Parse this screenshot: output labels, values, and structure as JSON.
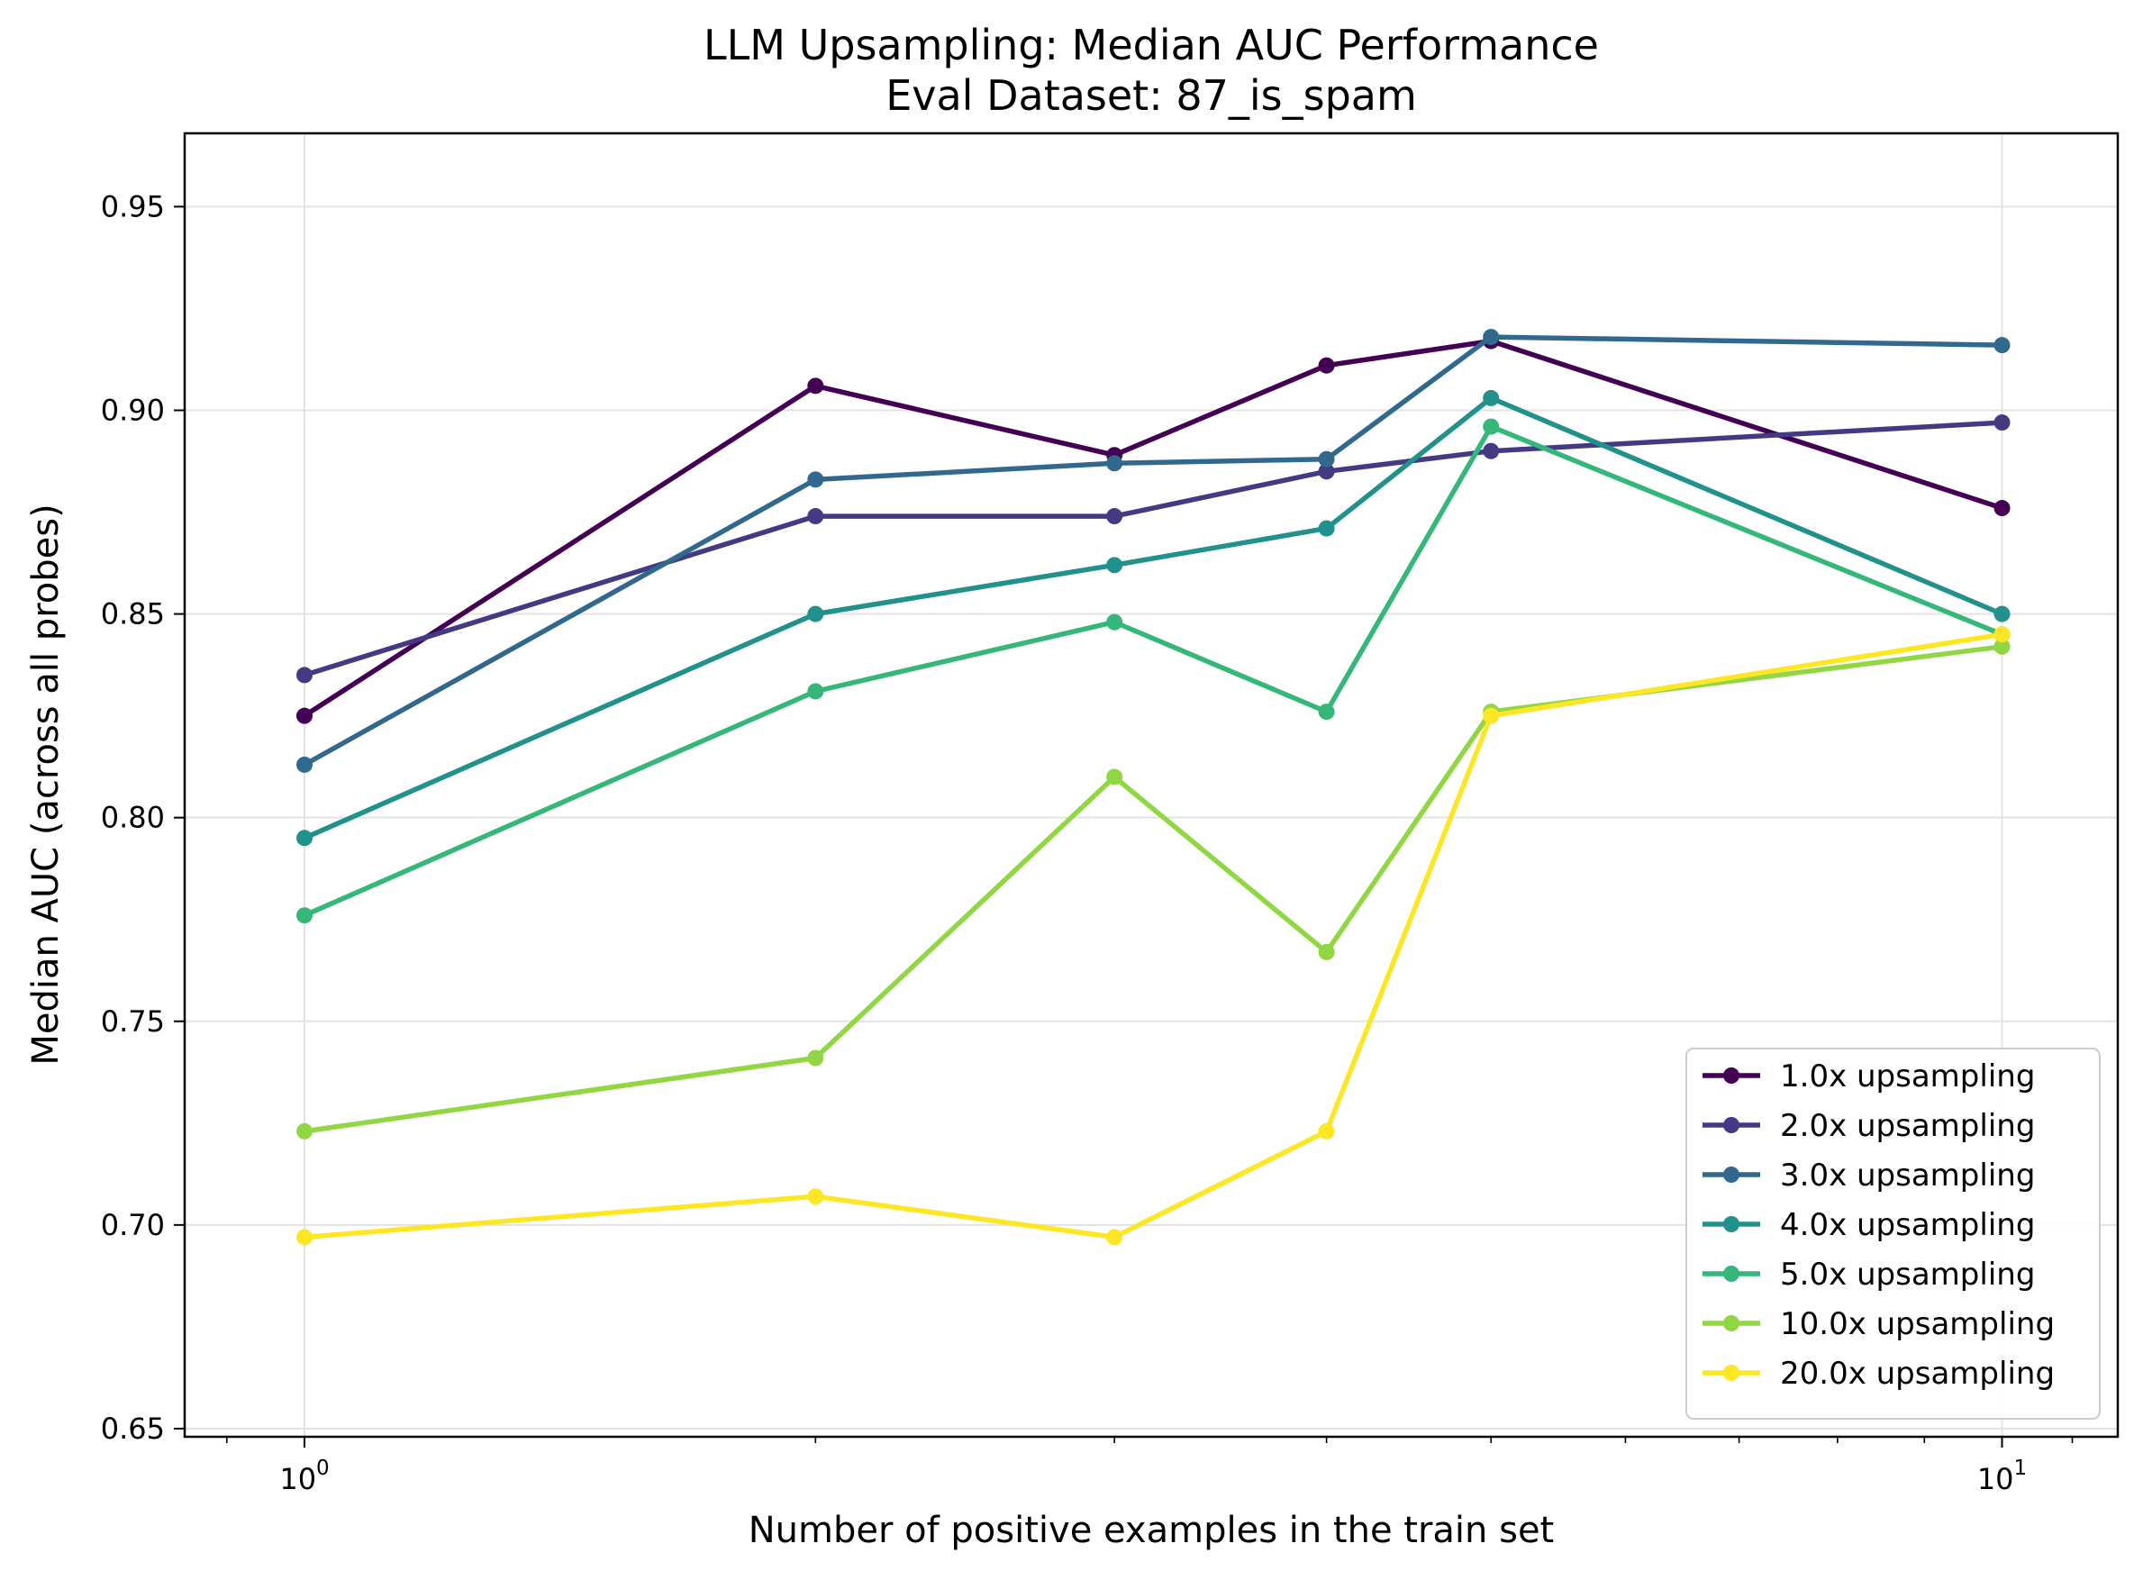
{
  "chart_data": {
    "type": "line",
    "title": "LLM Upsampling: Median AUC Performance",
    "subtitle": "Eval Dataset: 87_is_spam",
    "xlabel": "Number of positive examples in the train set",
    "ylabel": "Median AUC (across all probes)",
    "x_scale": "log",
    "xlim": [
      0.85,
      11.7
    ],
    "ylim": [
      0.648,
      0.968
    ],
    "x_ticks": [
      {
        "value": 1,
        "base": "10",
        "exp": "0"
      },
      {
        "value": 10,
        "base": "10",
        "exp": "1"
      }
    ],
    "y_ticks": [
      0.65,
      0.7,
      0.75,
      0.8,
      0.85,
      0.9,
      0.95
    ],
    "y_tick_labels": [
      "0.65",
      "0.70",
      "0.75",
      "0.80",
      "0.85",
      "0.90",
      "0.95"
    ],
    "grid": true,
    "legend_position": "lower right",
    "x": [
      1,
      2,
      3,
      4,
      5,
      10
    ],
    "series": [
      {
        "name": "1.0x upsampling",
        "color": "#440154",
        "values": [
          0.825,
          0.906,
          0.889,
          0.911,
          0.917,
          0.876
        ]
      },
      {
        "name": "2.0x upsampling",
        "color": "#443983",
        "values": [
          0.835,
          0.874,
          0.874,
          0.885,
          0.89,
          0.897
        ]
      },
      {
        "name": "3.0x upsampling",
        "color": "#31688e",
        "values": [
          0.813,
          0.883,
          0.887,
          0.888,
          0.918,
          0.916
        ]
      },
      {
        "name": "4.0x upsampling",
        "color": "#21918c",
        "values": [
          0.795,
          0.85,
          0.862,
          0.871,
          0.903,
          0.85
        ]
      },
      {
        "name": "5.0x upsampling",
        "color": "#35b779",
        "values": [
          0.776,
          0.831,
          0.848,
          0.826,
          0.896,
          0.845
        ]
      },
      {
        "name": "10.0x upsampling",
        "color": "#90d743",
        "values": [
          0.723,
          0.741,
          0.81,
          0.767,
          0.826,
          0.842
        ]
      },
      {
        "name": "20.0x upsampling",
        "color": "#fde725",
        "values": [
          0.697,
          0.707,
          0.697,
          0.723,
          0.825,
          0.845
        ]
      }
    ]
  }
}
